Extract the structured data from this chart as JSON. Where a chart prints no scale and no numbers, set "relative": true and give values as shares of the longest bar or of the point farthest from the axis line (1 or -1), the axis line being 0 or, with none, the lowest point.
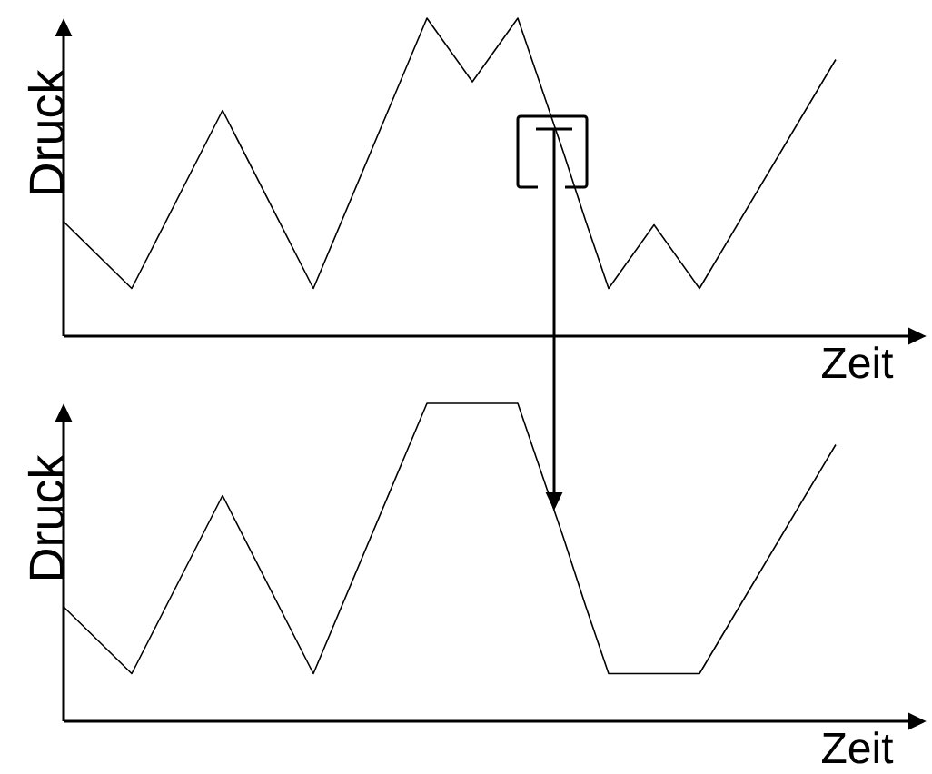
{
  "chart_data": [
    {
      "type": "line",
      "relative": true,
      "xlabel": "Zeit",
      "ylabel": "Druck",
      "categories": [
        null,
        null,
        null,
        null,
        null,
        null,
        null,
        null,
        null,
        null,
        null,
        null,
        null,
        null,
        null,
        null,
        null,
        null,
        null,
        null,
        null,
        null,
        null,
        null,
        null,
        null,
        null,
        null,
        null,
        null,
        null,
        null,
        null,
        null,
        null
      ],
      "series": [
        {
          "color": "#000000",
          "values": [
            0.36,
            0.29,
            0.22,
            0.15,
            0.29,
            0.43,
            0.57,
            0.71,
            0.57,
            0.43,
            0.29,
            0.15,
            0.32,
            0.49,
            0.66,
            0.83,
            1,
            0.9,
            0.8,
            0.9,
            1,
            0.79,
            0.58,
            0.36,
            0.15,
            0.25,
            0.35,
            0.25,
            0.15,
            0.27,
            0.39,
            0.51,
            0.63,
            0.75,
            0.87
          ]
        }
      ]
    },
    {
      "type": "line",
      "relative": true,
      "xlabel": "Zeit",
      "ylabel": "Druck",
      "categories": [
        null,
        null,
        null,
        null,
        null,
        null,
        null,
        null,
        null,
        null,
        null,
        null,
        null,
        null,
        null,
        null,
        null,
        null,
        null,
        null,
        null,
        null,
        null,
        null,
        null,
        null,
        null,
        null,
        null,
        null,
        null,
        null,
        null,
        null,
        null
      ],
      "series": [
        {
          "color": "#000000",
          "values": [
            0.36,
            0.29,
            0.22,
            0.15,
            0.29,
            0.43,
            0.57,
            0.71,
            0.57,
            0.43,
            0.29,
            0.15,
            0.32,
            0.49,
            0.66,
            0.83,
            1,
            1,
            1,
            1,
            1,
            0.79,
            0.58,
            0.36,
            0.15,
            0.15,
            0.15,
            0.15,
            0.15,
            0.27,
            0.39,
            0.51,
            0.63,
            0.75,
            0.87
          ]
        }
      ]
    }
  ]
}
